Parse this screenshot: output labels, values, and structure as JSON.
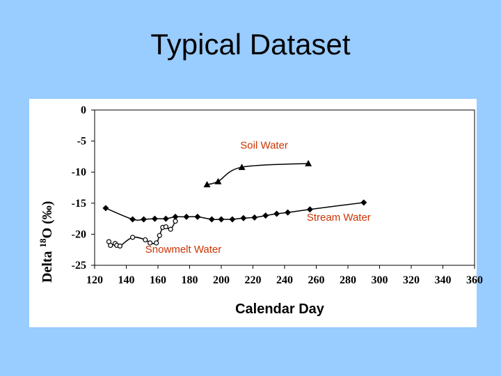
{
  "slide": {
    "title": "Typical Dataset"
  },
  "chart_data": {
    "type": "scatter",
    "xlabel": "Calendar Day",
    "ylabel_parts": {
      "prefix": "Delta ",
      "superscript": "18",
      "suffix": "O (‰)"
    },
    "xlim": [
      120,
      360
    ],
    "ylim": [
      -25,
      0
    ],
    "xticks": [
      120,
      140,
      160,
      180,
      200,
      220,
      240,
      260,
      280,
      300,
      320,
      340,
      360
    ],
    "yticks": [
      0,
      -5,
      -10,
      -15,
      -20,
      -25
    ],
    "grid": false,
    "legend": "none",
    "series": [
      {
        "name": "Soil Water",
        "marker": "triangle",
        "color": "#000000",
        "label_color": "#cc3300",
        "points": [
          [
            191,
            -12.0
          ],
          [
            198,
            -11.5
          ],
          [
            213,
            -9.2
          ],
          [
            255,
            -8.6
          ]
        ]
      },
      {
        "name": "Stream Water",
        "marker": "diamond",
        "color": "#000000",
        "label_color": "#cc3300",
        "points": [
          [
            127,
            -15.8
          ],
          [
            144,
            -17.6
          ],
          [
            151,
            -17.6
          ],
          [
            158,
            -17.5
          ],
          [
            165,
            -17.5
          ],
          [
            171,
            -17.2
          ],
          [
            178,
            -17.2
          ],
          [
            185,
            -17.2
          ],
          [
            194,
            -17.6
          ],
          [
            200,
            -17.6
          ],
          [
            207,
            -17.6
          ],
          [
            214,
            -17.4
          ],
          [
            221,
            -17.3
          ],
          [
            228,
            -17.0
          ],
          [
            235,
            -16.7
          ],
          [
            242,
            -16.5
          ],
          [
            256,
            -16.0
          ],
          [
            290,
            -14.9
          ]
        ]
      },
      {
        "name": "Snowmelt Water",
        "marker": "open-circle",
        "color": "#000000",
        "label_color": "#cc3300",
        "points": [
          [
            129,
            -21.2
          ],
          [
            130,
            -21.8
          ],
          [
            133,
            -21.5
          ],
          [
            134,
            -21.8
          ],
          [
            136,
            -21.9
          ],
          [
            144,
            -20.5
          ],
          [
            152,
            -20.9
          ],
          [
            155,
            -21.4
          ],
          [
            159,
            -21.4
          ],
          [
            161,
            -20.2
          ],
          [
            163,
            -18.9
          ],
          [
            165,
            -18.8
          ],
          [
            168,
            -19.2
          ],
          [
            171,
            -17.9
          ]
        ]
      }
    ],
    "annotations": [
      {
        "series": "Soil Water",
        "text": "Soil Water",
        "x": 212,
        "y": -6.2
      },
      {
        "series": "Stream Water",
        "text": "Stream Water",
        "x": 254,
        "y": -17.8
      },
      {
        "series": "Snowmelt Water",
        "text": "Snowmelt Water",
        "x": 152,
        "y": -23.0
      }
    ]
  }
}
